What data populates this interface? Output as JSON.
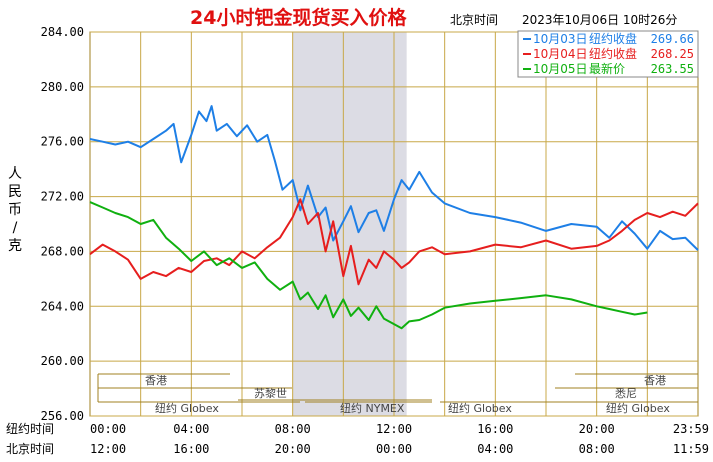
{
  "header": {
    "title": "24小时钯金现货买入价格",
    "tz_label": "北京时间",
    "timestamp": "2023年10月06日 10时26分"
  },
  "legend": [
    {
      "date": "10月03日",
      "label": "纽约收盘",
      "value": "269.66",
      "color": "#1e7fe6"
    },
    {
      "date": "10月04日",
      "label": "纽约收盘",
      "value": "268.25",
      "color": "#e61e1e"
    },
    {
      "date": "10月05日",
      "label": "最新价",
      "value": "263.55",
      "color": "#10b010"
    }
  ],
  "yaxis_title": "人民币/克",
  "row_labels": {
    "ny": "纽约时间",
    "bj": "北京时间"
  },
  "sessions": {
    "hk": "香港",
    "zurich": "苏黎世",
    "sydney": "悉尼",
    "ny_globex_1": "纽约 Globex",
    "ny_nymex": "纽约 NYMEX",
    "ny_globex_2": "纽约 Globex",
    "ny_globex_3": "纽约 Globex"
  },
  "chart_data": {
    "type": "line",
    "title": "24小时钯金现货买入价格",
    "ylabel": "人民币/克",
    "ylim": [
      256,
      284
    ],
    "yticks": [
      "256.00",
      "260.00",
      "264.00",
      "268.00",
      "272.00",
      "276.00",
      "280.00",
      "284.00"
    ],
    "xlim": [
      0,
      24
    ],
    "xticks_ny": [
      "00:00",
      "04:00",
      "08:00",
      "12:00",
      "16:00",
      "20:00",
      "23:59"
    ],
    "xticks_bj": [
      "12:00",
      "16:00",
      "20:00",
      "00:00",
      "04:00",
      "08:00",
      "11:59"
    ],
    "x_hours_ny": [
      0,
      4,
      8,
      12,
      16,
      20,
      24
    ],
    "grid": true,
    "shaded_region_ny_hours": [
      8,
      12.5
    ],
    "series": [
      {
        "name": "10月03日",
        "color": "#1e7fe6",
        "x": [
          0,
          0.5,
          1,
          1.5,
          2,
          2.5,
          3,
          3.3,
          3.6,
          4,
          4.3,
          4.6,
          4.8,
          5,
          5.4,
          5.8,
          6.2,
          6.6,
          7,
          7.3,
          7.6,
          8,
          8.3,
          8.6,
          9,
          9.3,
          9.6,
          10,
          10.3,
          10.6,
          11,
          11.3,
          11.6,
          12,
          12.3,
          12.6,
          13,
          13.5,
          14,
          15,
          16,
          17,
          18,
          19,
          20,
          20.5,
          21,
          21.5,
          22,
          22.5,
          23,
          23.5,
          24
        ],
        "values": [
          276.2,
          276.0,
          275.8,
          276.0,
          275.6,
          276.2,
          276.8,
          277.3,
          274.5,
          276.5,
          278.2,
          277.5,
          278.6,
          276.8,
          277.3,
          276.4,
          277.2,
          276.0,
          276.5,
          274.6,
          272.5,
          273.2,
          271.0,
          272.8,
          270.5,
          271.2,
          268.8,
          270.2,
          271.3,
          269.4,
          270.8,
          271.0,
          269.5,
          271.8,
          273.2,
          272.5,
          273.8,
          272.3,
          271.5,
          270.8,
          270.5,
          270.1,
          269.5,
          270.0,
          269.8,
          269.0,
          270.2,
          269.3,
          268.2,
          269.5,
          268.9,
          269.0,
          268.1
        ]
      },
      {
        "name": "10月04日",
        "color": "#e61e1e",
        "x": [
          0,
          0.5,
          1,
          1.5,
          2,
          2.5,
          3,
          3.5,
          4,
          4.5,
          5,
          5.5,
          6,
          6.5,
          7,
          7.5,
          8,
          8.3,
          8.6,
          9,
          9.3,
          9.6,
          10,
          10.3,
          10.6,
          11,
          11.3,
          11.6,
          12,
          12.3,
          12.6,
          13,
          13.5,
          14,
          15,
          16,
          17,
          18,
          19,
          20,
          20.5,
          21,
          21.5,
          22,
          22.5,
          23,
          23.5,
          24
        ],
        "values": [
          267.8,
          268.5,
          268.0,
          267.4,
          266.0,
          266.5,
          266.2,
          266.8,
          266.5,
          267.3,
          267.5,
          267.0,
          268.0,
          267.5,
          268.3,
          269.0,
          270.5,
          271.8,
          270.0,
          270.8,
          268.0,
          270.2,
          266.2,
          268.4,
          265.6,
          267.4,
          266.8,
          268.0,
          267.4,
          266.8,
          267.2,
          268.0,
          268.3,
          267.8,
          268.0,
          268.5,
          268.3,
          268.8,
          268.2,
          268.4,
          268.8,
          269.5,
          270.3,
          270.8,
          270.5,
          270.9,
          270.6,
          271.5
        ]
      },
      {
        "name": "10月05日",
        "color": "#10b010",
        "x": [
          0,
          0.5,
          1,
          1.5,
          2,
          2.5,
          3,
          3.5,
          4,
          4.5,
          5,
          5.5,
          6,
          6.5,
          7,
          7.5,
          8,
          8.3,
          8.6,
          9,
          9.3,
          9.6,
          10,
          10.3,
          10.6,
          11,
          11.3,
          11.6,
          12,
          12.3,
          12.6,
          13,
          13.5,
          14,
          15,
          16,
          17,
          18,
          19,
          20,
          20.5,
          21,
          21.5,
          22
        ],
        "values": [
          271.6,
          271.2,
          270.8,
          270.5,
          270.0,
          270.3,
          269.0,
          268.2,
          267.3,
          268.0,
          267.0,
          267.5,
          266.8,
          267.2,
          266.0,
          265.2,
          265.8,
          264.5,
          265.0,
          263.8,
          264.8,
          263.2,
          264.5,
          263.3,
          263.9,
          263.0,
          264.0,
          263.1,
          262.7,
          262.4,
          262.9,
          263.0,
          263.4,
          263.9,
          264.2,
          264.4,
          264.6,
          264.8,
          264.5,
          264.0,
          263.8,
          263.6,
          263.4,
          263.55
        ]
      }
    ]
  }
}
